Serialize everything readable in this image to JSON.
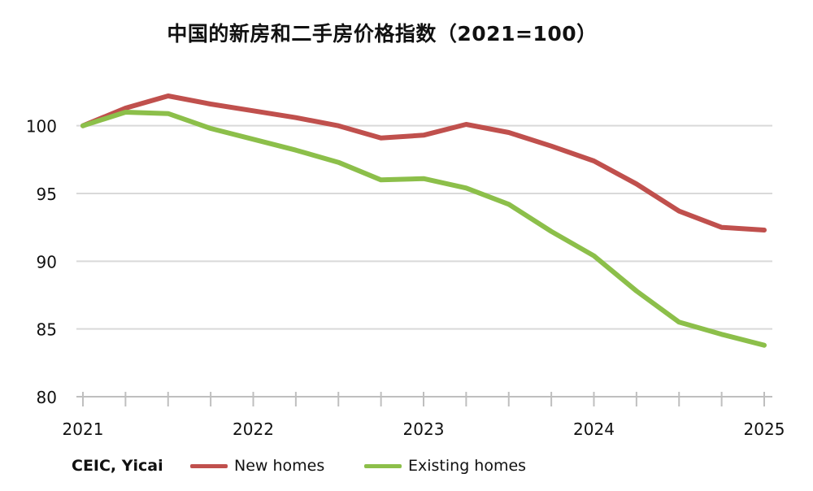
{
  "chart_data": {
    "type": "line",
    "title": "中国的新房和二手房价格指数（2021=100）",
    "source": "CEIC, Yicai",
    "xlabel": "",
    "ylabel": "",
    "x": [
      2021.0,
      2021.25,
      2021.5,
      2021.75,
      2022.0,
      2022.25,
      2022.5,
      2022.75,
      2023.0,
      2023.25,
      2023.5,
      2023.75,
      2024.0,
      2024.25,
      2024.5,
      2024.75,
      2025.0
    ],
    "x_ticks": [
      "2021",
      "2022",
      "2023",
      "2024",
      "2025"
    ],
    "y_ticks": [
      "80",
      "85",
      "90",
      "95",
      "100"
    ],
    "xlim": [
      2021,
      2025
    ],
    "ylim": [
      80,
      104
    ],
    "grid": "horizontal",
    "legend": "bottom",
    "series": [
      {
        "name": "New homes",
        "color": "#c0504d",
        "values": [
          100.0,
          101.3,
          102.2,
          101.6,
          101.1,
          100.6,
          100.0,
          99.1,
          99.3,
          100.1,
          99.5,
          98.5,
          97.4,
          95.7,
          93.7,
          92.5,
          92.3
        ]
      },
      {
        "name": "Existing homes",
        "color": "#8cbf4a",
        "values": [
          100.0,
          101.0,
          100.9,
          99.8,
          99.0,
          98.2,
          97.3,
          96.0,
          96.1,
          95.4,
          94.2,
          92.2,
          90.4,
          87.8,
          85.5,
          84.6,
          83.8
        ]
      }
    ]
  }
}
